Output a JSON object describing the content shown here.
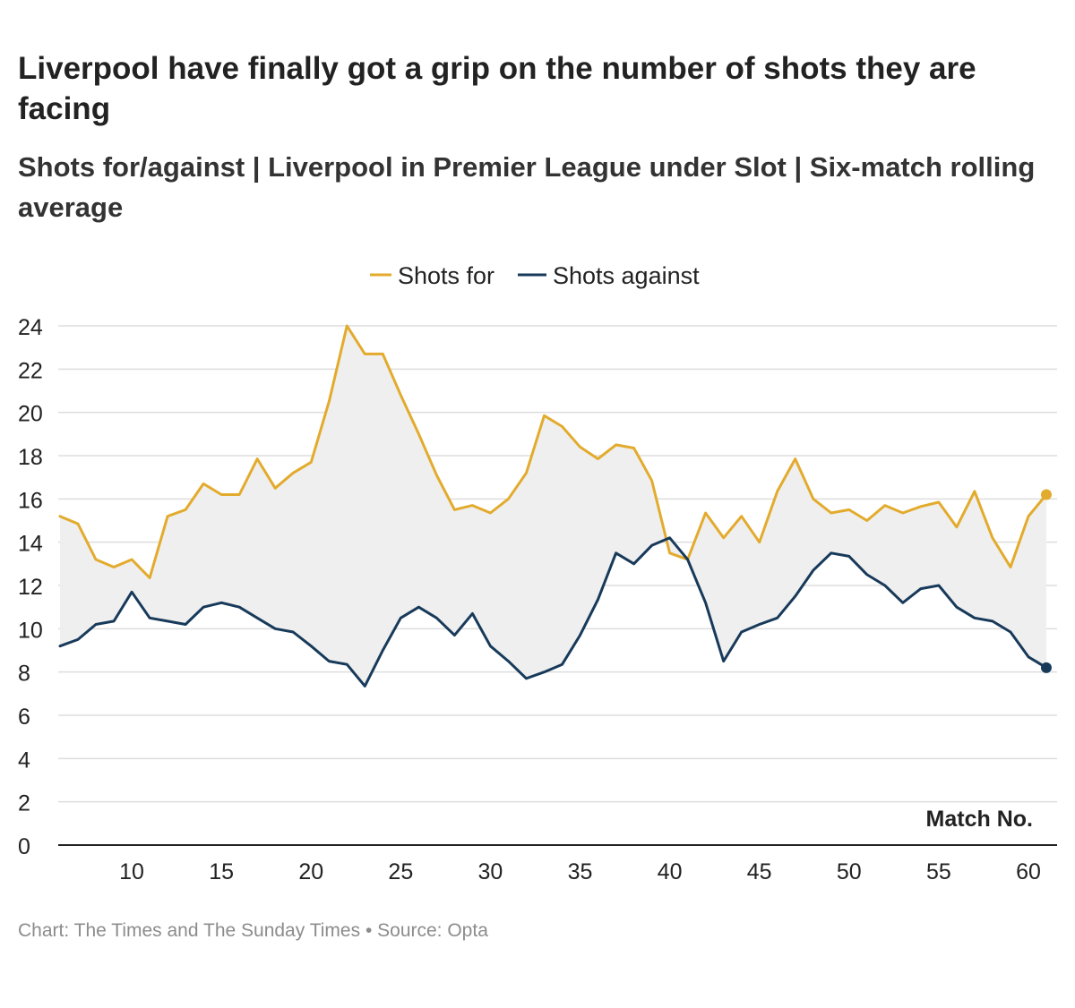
{
  "title": "Liverpool have finally got a grip on the number of shots they are facing",
  "subtitle": "Shots for/against | Liverpool in Premier League under Slot | Six-match rolling average",
  "footer": {
    "chart_credit": "Chart: The Times and The Sunday Times",
    "separator": "•",
    "source": "Source: Opta"
  },
  "chart_data": {
    "type": "line",
    "title": "Liverpool have finally got a grip on the number of shots they are facing",
    "subtitle": "Shots for/against | Liverpool in Premier League under Slot | Six-match rolling average",
    "xlabel": "Match No.",
    "ylabel": "",
    "xlim": [
      5.9,
      61.6
    ],
    "ylim": [
      0,
      24
    ],
    "xticks": [
      10,
      15,
      20,
      25,
      30,
      35,
      40,
      45,
      50,
      55,
      60
    ],
    "yticks": [
      0,
      2,
      4,
      6,
      8,
      10,
      12,
      14,
      16,
      18,
      20,
      22,
      24
    ],
    "grid": "horizontal",
    "legend_position": "top-center",
    "shaded_area_between_series": true,
    "shade_color": "#efefef",
    "x": [
      6,
      7,
      8,
      9,
      10,
      11,
      12,
      13,
      14,
      15,
      16,
      17,
      18,
      19,
      20,
      21,
      22,
      23,
      24,
      25,
      26,
      27,
      28,
      29,
      30,
      31,
      32,
      33,
      34,
      35,
      36,
      37,
      38,
      39,
      40,
      41,
      42,
      43,
      44,
      45,
      46,
      47,
      48,
      49,
      50,
      51,
      52,
      53,
      54,
      55,
      56,
      57,
      58,
      59,
      60,
      61
    ],
    "series": [
      {
        "name": "Shots for",
        "color": "#e3ab2d",
        "values": [
          15.2,
          14.85,
          13.2,
          12.85,
          13.2,
          12.35,
          15.2,
          15.5,
          16.7,
          16.2,
          16.2,
          17.85,
          16.5,
          17.2,
          17.7,
          20.5,
          24.0,
          22.7,
          22.7,
          20.8,
          19.0,
          17.1,
          15.5,
          15.7,
          15.35,
          16.0,
          17.2,
          19.85,
          19.35,
          18.4,
          17.85,
          18.5,
          18.35,
          16.85,
          13.5,
          13.2,
          15.35,
          14.2,
          15.2,
          14.0,
          16.35,
          17.85,
          16.0,
          15.35,
          15.5,
          15.0,
          15.7,
          15.35,
          15.65,
          15.85,
          14.7,
          16.35,
          14.2,
          12.85,
          15.2,
          16.2
        ]
      },
      {
        "name": "Shots against",
        "color": "#183a5a",
        "values": [
          9.2,
          9.5,
          10.2,
          10.35,
          11.7,
          10.5,
          10.35,
          10.2,
          11.0,
          11.2,
          11.0,
          10.5,
          10.0,
          9.85,
          9.2,
          8.5,
          8.35,
          7.35,
          9.0,
          10.5,
          11.0,
          10.5,
          9.7,
          10.7,
          9.2,
          8.5,
          7.7,
          8.0,
          8.35,
          9.7,
          11.35,
          13.5,
          13.0,
          13.85,
          14.2,
          13.2,
          11.2,
          8.5,
          9.85,
          10.2,
          10.5,
          11.5,
          12.7,
          13.5,
          13.35,
          12.5,
          12.0,
          11.2,
          11.85,
          12.0,
          11.0,
          10.5,
          10.35,
          9.85,
          8.7,
          8.2
        ]
      }
    ]
  }
}
